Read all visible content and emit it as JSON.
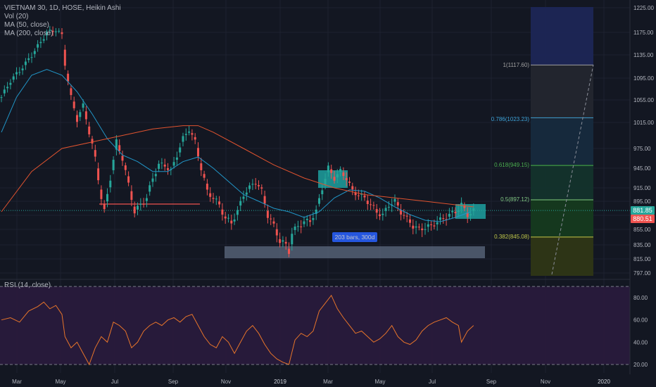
{
  "legend": {
    "symbol": "VIETNAM 30, 1D, HOSE, Heikin Ashi",
    "vol": "Vol (20)",
    "ma50": "MA (50, close)",
    "ma200": "MA (200, close)"
  },
  "rsi_title": "RSI (14, close)",
  "price_tags": {
    "current": "881.85",
    "prior": "880.51"
  },
  "annotation": {
    "bars": "203 bars, 300d"
  },
  "fib_labels": {
    "f1": "1(1117.60)",
    "f0786": "0.786(1023.23)",
    "f0618": "0.618(949.15)",
    "f05": "0.5(897.12)",
    "f0382": "0.382(845.08)"
  },
  "colors": {
    "background": "#131722",
    "up": "#26a69a",
    "down": "#ef5350",
    "ma50": "#2196c8",
    "ma200": "#e0532f",
    "rsi_line": "#e8752a",
    "rsi_fill": "#2a1b3d"
  },
  "chart_data": [
    {
      "type": "candlestick",
      "title": "VIETNAM 30, 1D, HOSE, Heikin Ashi",
      "x_ticks": [
        "Mar",
        "May",
        "Jul",
        "Sep",
        "Nov",
        "2019",
        "Mar",
        "May",
        "Jul",
        "Sep",
        "Nov",
        "2020"
      ],
      "y_ticks": [
        797,
        815,
        835,
        855,
        875,
        895,
        915,
        945,
        975,
        1015,
        1055,
        1095,
        1135,
        1175,
        1225
      ],
      "ylim": [
        797,
        1225
      ],
      "close_path": [
        [
          0,
          1060
        ],
        [
          3,
          1090
        ],
        [
          8,
          1120
        ],
        [
          12,
          1150
        ],
        [
          15,
          1175
        ],
        [
          18,
          1180
        ],
        [
          20,
          1170
        ],
        [
          21,
          1120
        ],
        [
          23,
          1060
        ],
        [
          25,
          1020
        ],
        [
          27,
          1045
        ],
        [
          29,
          1000
        ],
        [
          31,
          960
        ],
        [
          33,
          900
        ],
        [
          34,
          880
        ],
        [
          36,
          930
        ],
        [
          38,
          985
        ],
        [
          40,
          960
        ],
        [
          42,
          920
        ],
        [
          44,
          880
        ],
        [
          46,
          890
        ],
        [
          48,
          900
        ],
        [
          50,
          930
        ],
        [
          52,
          950
        ],
        [
          54,
          950
        ],
        [
          56,
          940
        ],
        [
          58,
          965
        ],
        [
          60,
          990
        ],
        [
          62,
          1005
        ],
        [
          64,
          985
        ],
        [
          66,
          945
        ],
        [
          68,
          910
        ],
        [
          70,
          900
        ],
        [
          72,
          890
        ],
        [
          74,
          870
        ],
        [
          76,
          865
        ],
        [
          78,
          880
        ],
        [
          80,
          905
        ],
        [
          82,
          915
        ],
        [
          84,
          925
        ],
        [
          86,
          910
        ],
        [
          88,
          875
        ],
        [
          90,
          860
        ],
        [
          92,
          840
        ],
        [
          94,
          835
        ],
        [
          95,
          826
        ],
        [
          96,
          850
        ],
        [
          98,
          860
        ],
        [
          100,
          865
        ],
        [
          102,
          868
        ],
        [
          104,
          880
        ],
        [
          106,
          915
        ],
        [
          108,
          945
        ],
        [
          110,
          930
        ],
        [
          112,
          940
        ],
        [
          114,
          930
        ],
        [
          116,
          910
        ],
        [
          118,
          905
        ],
        [
          120,
          900
        ],
        [
          122,
          890
        ],
        [
          124,
          880
        ],
        [
          126,
          875
        ],
        [
          128,
          890
        ],
        [
          130,
          895
        ],
        [
          132,
          880
        ],
        [
          134,
          870
        ],
        [
          136,
          860
        ],
        [
          138,
          855
        ],
        [
          140,
          858
        ],
        [
          142,
          860
        ],
        [
          144,
          866
        ],
        [
          146,
          870
        ],
        [
          148,
          876
        ],
        [
          150,
          880
        ],
        [
          152,
          890
        ],
        [
          154,
          876
        ],
        [
          156,
          881
        ]
      ],
      "ma50_path": [
        [
          0,
          1000
        ],
        [
          5,
          1060
        ],
        [
          10,
          1100
        ],
        [
          15,
          1110
        ],
        [
          20,
          1100
        ],
        [
          25,
          1070
        ],
        [
          30,
          1030
        ],
        [
          35,
          990
        ],
        [
          40,
          965
        ],
        [
          45,
          955
        ],
        [
          50,
          940
        ],
        [
          55,
          940
        ],
        [
          60,
          955
        ],
        [
          65,
          962
        ],
        [
          70,
          945
        ],
        [
          75,
          925
        ],
        [
          80,
          905
        ],
        [
          85,
          895
        ],
        [
          90,
          885
        ],
        [
          95,
          880
        ],
        [
          100,
          872
        ],
        [
          105,
          880
        ],
        [
          110,
          900
        ],
        [
          115,
          912
        ],
        [
          120,
          910
        ],
        [
          125,
          900
        ],
        [
          130,
          887
        ],
        [
          135,
          876
        ],
        [
          140,
          868
        ],
        [
          145,
          866
        ],
        [
          150,
          872
        ],
        [
          155,
          880
        ]
      ],
      "ma200_path": [
        [
          0,
          880
        ],
        [
          10,
          940
        ],
        [
          20,
          975
        ],
        [
          30,
          985
        ],
        [
          40,
          995
        ],
        [
          50,
          1005
        ],
        [
          60,
          1010
        ],
        [
          65,
          1010
        ],
        [
          70,
          1000
        ],
        [
          80,
          975
        ],
        [
          90,
          950
        ],
        [
          100,
          930
        ],
        [
          110,
          915
        ],
        [
          120,
          905
        ],
        [
          130,
          900
        ],
        [
          140,
          895
        ],
        [
          150,
          890
        ],
        [
          156,
          887
        ]
      ],
      "hlines": [
        {
          "price": 891,
          "color": "#ef5350"
        }
      ],
      "fib": [
        {
          "level": 1,
          "price": 1117.6
        },
        {
          "level": 0.786,
          "price": 1023.23
        },
        {
          "level": 0.618,
          "price": 949.15
        },
        {
          "level": 0.5,
          "price": 897.12
        },
        {
          "level": 0.382,
          "price": 845.08
        }
      ]
    },
    {
      "type": "line",
      "title": "RSI (14, close)",
      "y_ticks": [
        20,
        40,
        60,
        80
      ],
      "ylim": [
        15,
        95
      ],
      "bands": [
        20,
        90
      ],
      "rsi_path": [
        [
          0,
          60
        ],
        [
          3,
          62
        ],
        [
          6,
          58
        ],
        [
          9,
          68
        ],
        [
          12,
          72
        ],
        [
          14,
          76
        ],
        [
          16,
          70
        ],
        [
          18,
          73
        ],
        [
          20,
          65
        ],
        [
          21,
          45
        ],
        [
          23,
          35
        ],
        [
          25,
          40
        ],
        [
          27,
          30
        ],
        [
          29,
          20
        ],
        [
          31,
          35
        ],
        [
          33,
          45
        ],
        [
          35,
          40
        ],
        [
          37,
          58
        ],
        [
          39,
          55
        ],
        [
          41,
          50
        ],
        [
          43,
          35
        ],
        [
          45,
          40
        ],
        [
          47,
          50
        ],
        [
          49,
          55
        ],
        [
          51,
          58
        ],
        [
          53,
          55
        ],
        [
          55,
          60
        ],
        [
          57,
          62
        ],
        [
          59,
          58
        ],
        [
          61,
          63
        ],
        [
          63,
          65
        ],
        [
          65,
          55
        ],
        [
          67,
          45
        ],
        [
          69,
          38
        ],
        [
          71,
          35
        ],
        [
          73,
          45
        ],
        [
          75,
          40
        ],
        [
          77,
          30
        ],
        [
          79,
          40
        ],
        [
          81,
          50
        ],
        [
          83,
          55
        ],
        [
          85,
          48
        ],
        [
          87,
          38
        ],
        [
          89,
          30
        ],
        [
          91,
          25
        ],
        [
          93,
          22
        ],
        [
          95,
          20
        ],
        [
          97,
          42
        ],
        [
          99,
          48
        ],
        [
          101,
          45
        ],
        [
          103,
          50
        ],
        [
          105,
          68
        ],
        [
          107,
          75
        ],
        [
          109,
          82
        ],
        [
          111,
          70
        ],
        [
          113,
          62
        ],
        [
          115,
          55
        ],
        [
          117,
          48
        ],
        [
          119,
          50
        ],
        [
          121,
          45
        ],
        [
          123,
          40
        ],
        [
          125,
          43
        ],
        [
          127,
          48
        ],
        [
          129,
          55
        ],
        [
          131,
          45
        ],
        [
          133,
          40
        ],
        [
          135,
          38
        ],
        [
          137,
          42
        ],
        [
          139,
          50
        ],
        [
          141,
          55
        ],
        [
          143,
          58
        ],
        [
          145,
          60
        ],
        [
          147,
          62
        ],
        [
          149,
          58
        ],
        [
          151,
          55
        ],
        [
          152,
          40
        ],
        [
          154,
          50
        ],
        [
          156,
          55
        ]
      ]
    }
  ]
}
